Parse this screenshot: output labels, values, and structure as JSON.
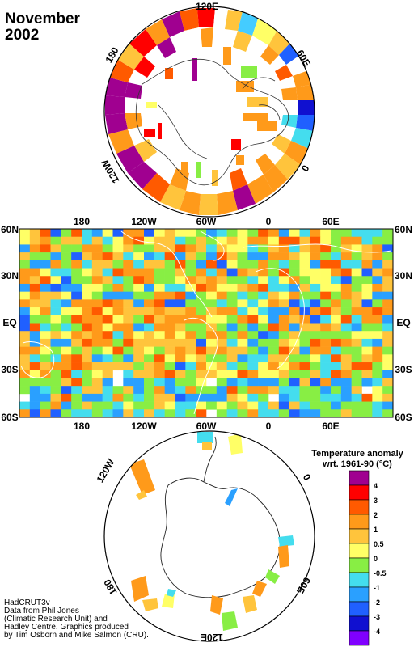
{
  "header": {
    "month": "November",
    "year": "2002"
  },
  "north_polar": {
    "labels": [
      "120E",
      "60E",
      "0",
      "120W",
      "180"
    ]
  },
  "equirect": {
    "lat_labels": [
      "60N",
      "30N",
      "EQ",
      "30S",
      "60S"
    ],
    "lon_labels": [
      "180",
      "120W",
      "60W",
      "0",
      "60E"
    ]
  },
  "south_polar": {
    "labels": [
      "120W",
      "0",
      "60E",
      "120E",
      "180"
    ]
  },
  "legend": {
    "title_line1": "Temperature anomaly",
    "title_line2": "wrt. 1961-90  (°C)",
    "bins": [
      {
        "label": "4",
        "color": "#a00090"
      },
      {
        "label": "3",
        "color": "#ff0000"
      },
      {
        "label": "2",
        "color": "#ff5a00"
      },
      {
        "label": "1",
        "color": "#ff9a1a"
      },
      {
        "label": "0.5",
        "color": "#ffc43c"
      },
      {
        "label": "0",
        "color": "#ffff66"
      },
      {
        "label": "-0.5",
        "color": "#88ee44"
      },
      {
        "label": "-1",
        "color": "#44ddee"
      },
      {
        "label": "-2",
        "color": "#2aa0ff"
      },
      {
        "label": "-3",
        "color": "#2060ff"
      },
      {
        "label": "-4",
        "color": "#1010d0"
      },
      {
        "label": "",
        "color": "#8000ff"
      }
    ]
  },
  "credits": {
    "line1": "HadCRUT3v",
    "line2": "Data from Phil Jones",
    "line3": "(Climatic Research Unit) and",
    "line4": "Hadley Centre.  Graphics produced",
    "line5": "by Tim Osborn and Mike Salmon (CRU)."
  }
}
